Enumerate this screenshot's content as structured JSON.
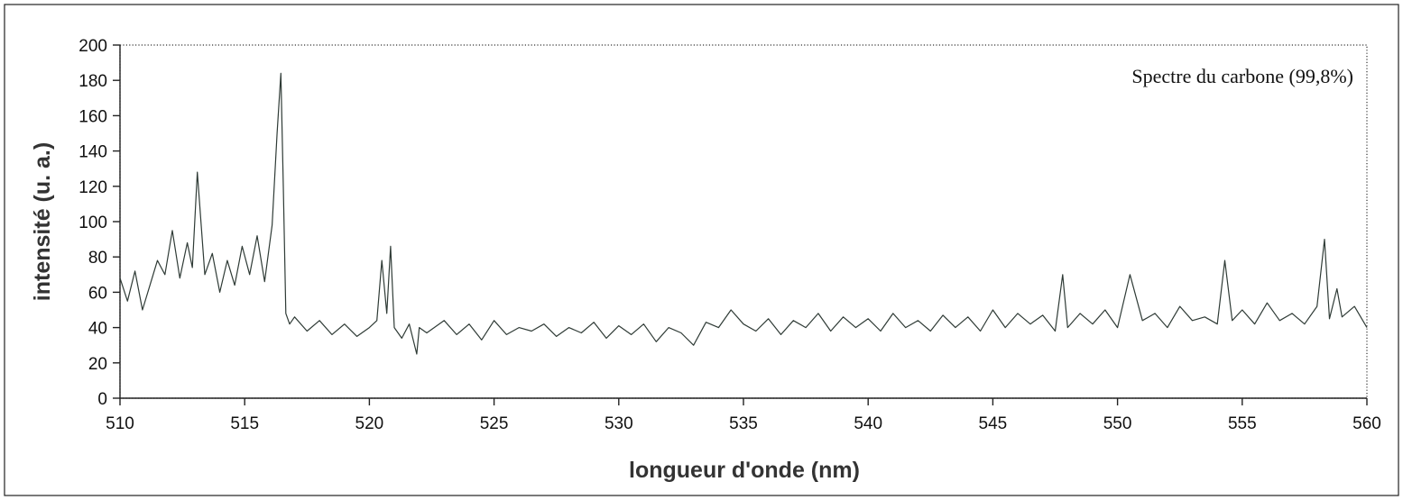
{
  "chart_data": {
    "type": "line",
    "title": "",
    "annotation": "Spectre du carbone (99,8%)",
    "xlabel": "longueur d'onde (nm)",
    "ylabel": "intensité (u. a.)",
    "xlim": [
      510,
      560
    ],
    "ylim": [
      0,
      200
    ],
    "xticks": [
      510,
      515,
      520,
      525,
      530,
      535,
      540,
      545,
      550,
      555,
      560
    ],
    "yticks": [
      0,
      20,
      40,
      60,
      80,
      100,
      120,
      140,
      160,
      180,
      200
    ],
    "grid": false,
    "legend": "none",
    "series": [
      {
        "color": "#2f3b36",
        "x": [
          510.0,
          510.3,
          510.6,
          510.9,
          511.2,
          511.5,
          511.8,
          512.1,
          512.4,
          512.7,
          512.9,
          513.1,
          513.4,
          513.7,
          514.0,
          514.3,
          514.6,
          514.9,
          515.2,
          515.5,
          515.8,
          516.1,
          516.3,
          516.45,
          516.55,
          516.65,
          516.8,
          517.0,
          517.5,
          518.0,
          518.5,
          519.0,
          519.5,
          520.0,
          520.3,
          520.5,
          520.7,
          520.85,
          521.0,
          521.3,
          521.6,
          521.9,
          522.0,
          522.3,
          523.0,
          523.5,
          524.0,
          524.5,
          525.0,
          525.5,
          526.0,
          526.5,
          527.0,
          527.5,
          528.0,
          528.5,
          529.0,
          529.5,
          530.0,
          530.5,
          531.0,
          531.5,
          532.0,
          532.5,
          533.0,
          533.5,
          534.0,
          534.5,
          535.0,
          535.5,
          536.0,
          536.5,
          537.0,
          537.5,
          538.0,
          538.5,
          539.0,
          539.5,
          540.0,
          540.5,
          541.0,
          541.5,
          542.0,
          542.5,
          543.0,
          543.5,
          544.0,
          544.5,
          545.0,
          545.5,
          546.0,
          546.5,
          547.0,
          547.5,
          547.8,
          548.0,
          548.5,
          549.0,
          549.5,
          550.0,
          550.5,
          551.0,
          551.5,
          552.0,
          552.5,
          553.0,
          553.5,
          554.0,
          554.3,
          554.6,
          555.0,
          555.5,
          556.0,
          556.5,
          557.0,
          557.5,
          558.0,
          558.3,
          558.5,
          558.8,
          559.0,
          559.5,
          560.0
        ],
        "y": [
          68,
          55,
          72,
          50,
          64,
          78,
          70,
          95,
          68,
          88,
          74,
          128,
          70,
          82,
          60,
          78,
          64,
          86,
          70,
          92,
          66,
          98,
          150,
          184,
          120,
          48,
          42,
          46,
          38,
          44,
          36,
          42,
          35,
          40,
          44,
          78,
          48,
          86,
          40,
          34,
          42,
          25,
          40,
          37,
          44,
          36,
          42,
          33,
          44,
          36,
          40,
          38,
          42,
          35,
          40,
          37,
          43,
          34,
          41,
          36,
          42,
          32,
          40,
          37,
          30,
          43,
          40,
          50,
          42,
          38,
          45,
          36,
          44,
          40,
          48,
          38,
          46,
          40,
          45,
          38,
          48,
          40,
          44,
          38,
          47,
          40,
          46,
          38,
          50,
          40,
          48,
          42,
          47,
          38,
          70,
          40,
          48,
          42,
          50,
          40,
          70,
          44,
          48,
          40,
          52,
          44,
          46,
          42,
          78,
          44,
          50,
          42,
          54,
          44,
          48,
          42,
          52,
          90,
          45,
          62,
          46,
          52,
          40
        ]
      }
    ]
  }
}
